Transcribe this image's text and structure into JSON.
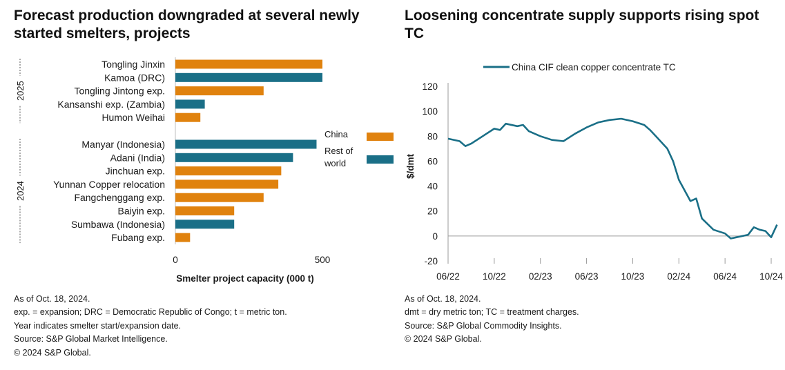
{
  "left": {
    "title": "Forecast production downgraded at several newly started smelters, projects",
    "notes": [
      "As of Oct. 18, 2024.",
      "exp. = expansion; DRC = Democratic Republic of Congo; t = metric ton.",
      "Year indicates smelter start/expansion date.",
      "Source: S&P Global Market Intelligence.",
      "© 2024 S&P Global."
    ]
  },
  "right": {
    "title": "Loosening concentrate supply supports rising spot TC",
    "notes": [
      "As of Oct. 18, 2024.",
      "dmt = dry metric ton; TC = treatment charges.",
      "Source: S&P Global Commodity Insights.",
      "© 2024 S&P Global."
    ]
  },
  "chart_data": [
    {
      "type": "bar",
      "orientation": "horizontal",
      "xlabel": "Smelter project capacity (000 t)",
      "xlim": [
        0,
        500
      ],
      "xticks": [
        "0",
        "500"
      ],
      "colors": {
        "China": "#E0820E",
        "Rest of world": "#1A6F87"
      },
      "legend": {
        "placement": "right",
        "entries": [
          "China",
          "Rest of\nworld"
        ]
      },
      "groups": [
        {
          "label": "2025",
          "bars": [
            {
              "name": "Tongling Jinxin",
              "value": 500,
              "region": "China"
            },
            {
              "name": "Kamoa (DRC)",
              "value": 500,
              "region": "Rest of world"
            },
            {
              "name": "Tongling Jintong exp.",
              "value": 300,
              "region": "China"
            },
            {
              "name": "Kansanshi exp. (Zambia)",
              "value": 100,
              "region": "Rest of world"
            },
            {
              "name": "Humon Weihai",
              "value": 85,
              "region": "China"
            }
          ]
        },
        {
          "label": "2024",
          "bars": [
            {
              "name": "Manyar (Indonesia)",
              "value": 480,
              "region": "Rest of world"
            },
            {
              "name": "Adani (India)",
              "value": 400,
              "region": "Rest of world"
            },
            {
              "name": "Jinchuan exp.",
              "value": 360,
              "region": "China"
            },
            {
              "name": "Yunnan Copper relocation",
              "value": 350,
              "region": "China"
            },
            {
              "name": "Fangchenggang exp.",
              "value": 300,
              "region": "China"
            },
            {
              "name": "Baiyin exp.",
              "value": 200,
              "region": "China"
            },
            {
              "name": "Sumbawa (Indonesia)",
              "value": 200,
              "region": "Rest of world"
            },
            {
              "name": "Fubang exp.",
              "value": 50,
              "region": "China"
            }
          ]
        }
      ]
    },
    {
      "type": "line",
      "ylabel": "$/dmt",
      "ylim": [
        -20,
        120
      ],
      "yticks": [
        120,
        100,
        80,
        60,
        40,
        20,
        0,
        -20
      ],
      "xlim": [
        "2022-06",
        "2024-10"
      ],
      "xticks": [
        "06/22",
        "10/22",
        "02/23",
        "06/23",
        "10/23",
        "02/24",
        "06/24",
        "10/24"
      ],
      "color": "#1A6F87",
      "legend": {
        "placement": "top"
      },
      "series": [
        {
          "name": "China CIF clean copper concentrate TC",
          "x": [
            "2022-06",
            "2022-07",
            "2022-07",
            "2022-08",
            "2022-09",
            "2022-10",
            "2022-10",
            "2022-11",
            "2022-12",
            "2022-12",
            "2023-01",
            "2023-02",
            "2023-03",
            "2023-04",
            "2023-05",
            "2023-06",
            "2023-07",
            "2023-08",
            "2023-09",
            "2023-10",
            "2023-11",
            "2023-11",
            "2023-12",
            "2024-01",
            "2024-01",
            "2024-02",
            "2024-03",
            "2024-03",
            "2024-04",
            "2024-05",
            "2024-06",
            "2024-06",
            "2024-07",
            "2024-08",
            "2024-08",
            "2024-09",
            "2024-09",
            "2024-10",
            "2024-10"
          ],
          "y": [
            78,
            76,
            72,
            74,
            80,
            86,
            85,
            90,
            88,
            89,
            84,
            80,
            77,
            76,
            82,
            87,
            91,
            93,
            94,
            92,
            89,
            85,
            80,
            70,
            60,
            45,
            28,
            30,
            14,
            5,
            2,
            -2,
            -1,
            1,
            7,
            5,
            4,
            -1,
            9
          ]
        }
      ]
    }
  ]
}
